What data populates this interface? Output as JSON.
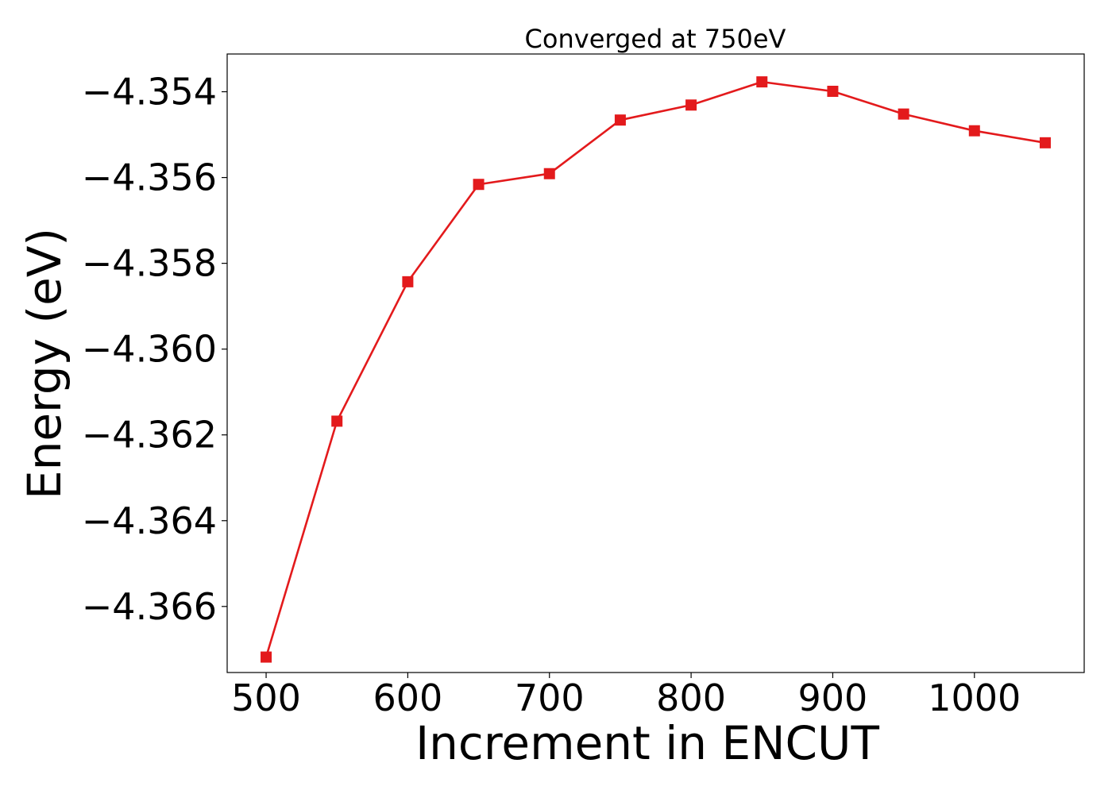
{
  "chart_data": {
    "type": "line",
    "title": "Converged at 750eV",
    "xlabel": "Increment in ENCUT",
    "ylabel": "Energy (eV)",
    "x": [
      500,
      550,
      600,
      650,
      700,
      750,
      800,
      850,
      900,
      950,
      1000,
      1050
    ],
    "series": [
      {
        "values": [
          -4.36718,
          -4.36168,
          -4.35843,
          -4.35616,
          -4.35591,
          -4.35466,
          -4.35431,
          -4.35377,
          -4.35399,
          -4.35452,
          -4.35491,
          -4.35519
        ],
        "color": "#e31a1c",
        "marker": "square"
      }
    ],
    "xlim": [
      472.5,
      1077.5
    ],
    "ylim": [
      -4.36754,
      -4.35312
    ],
    "xticks": [
      500,
      600,
      700,
      800,
      900,
      1000
    ],
    "xtick_labels": [
      "500",
      "600",
      "700",
      "800",
      "900",
      "1000"
    ],
    "yticks": [
      -4.354,
      -4.356,
      -4.358,
      -4.36,
      -4.362,
      -4.364,
      -4.366
    ],
    "ytick_labels": [
      "−4.354",
      "−4.356",
      "−4.358",
      "−4.360",
      "−4.362",
      "−4.364",
      "−4.366"
    ],
    "grid": false
  }
}
